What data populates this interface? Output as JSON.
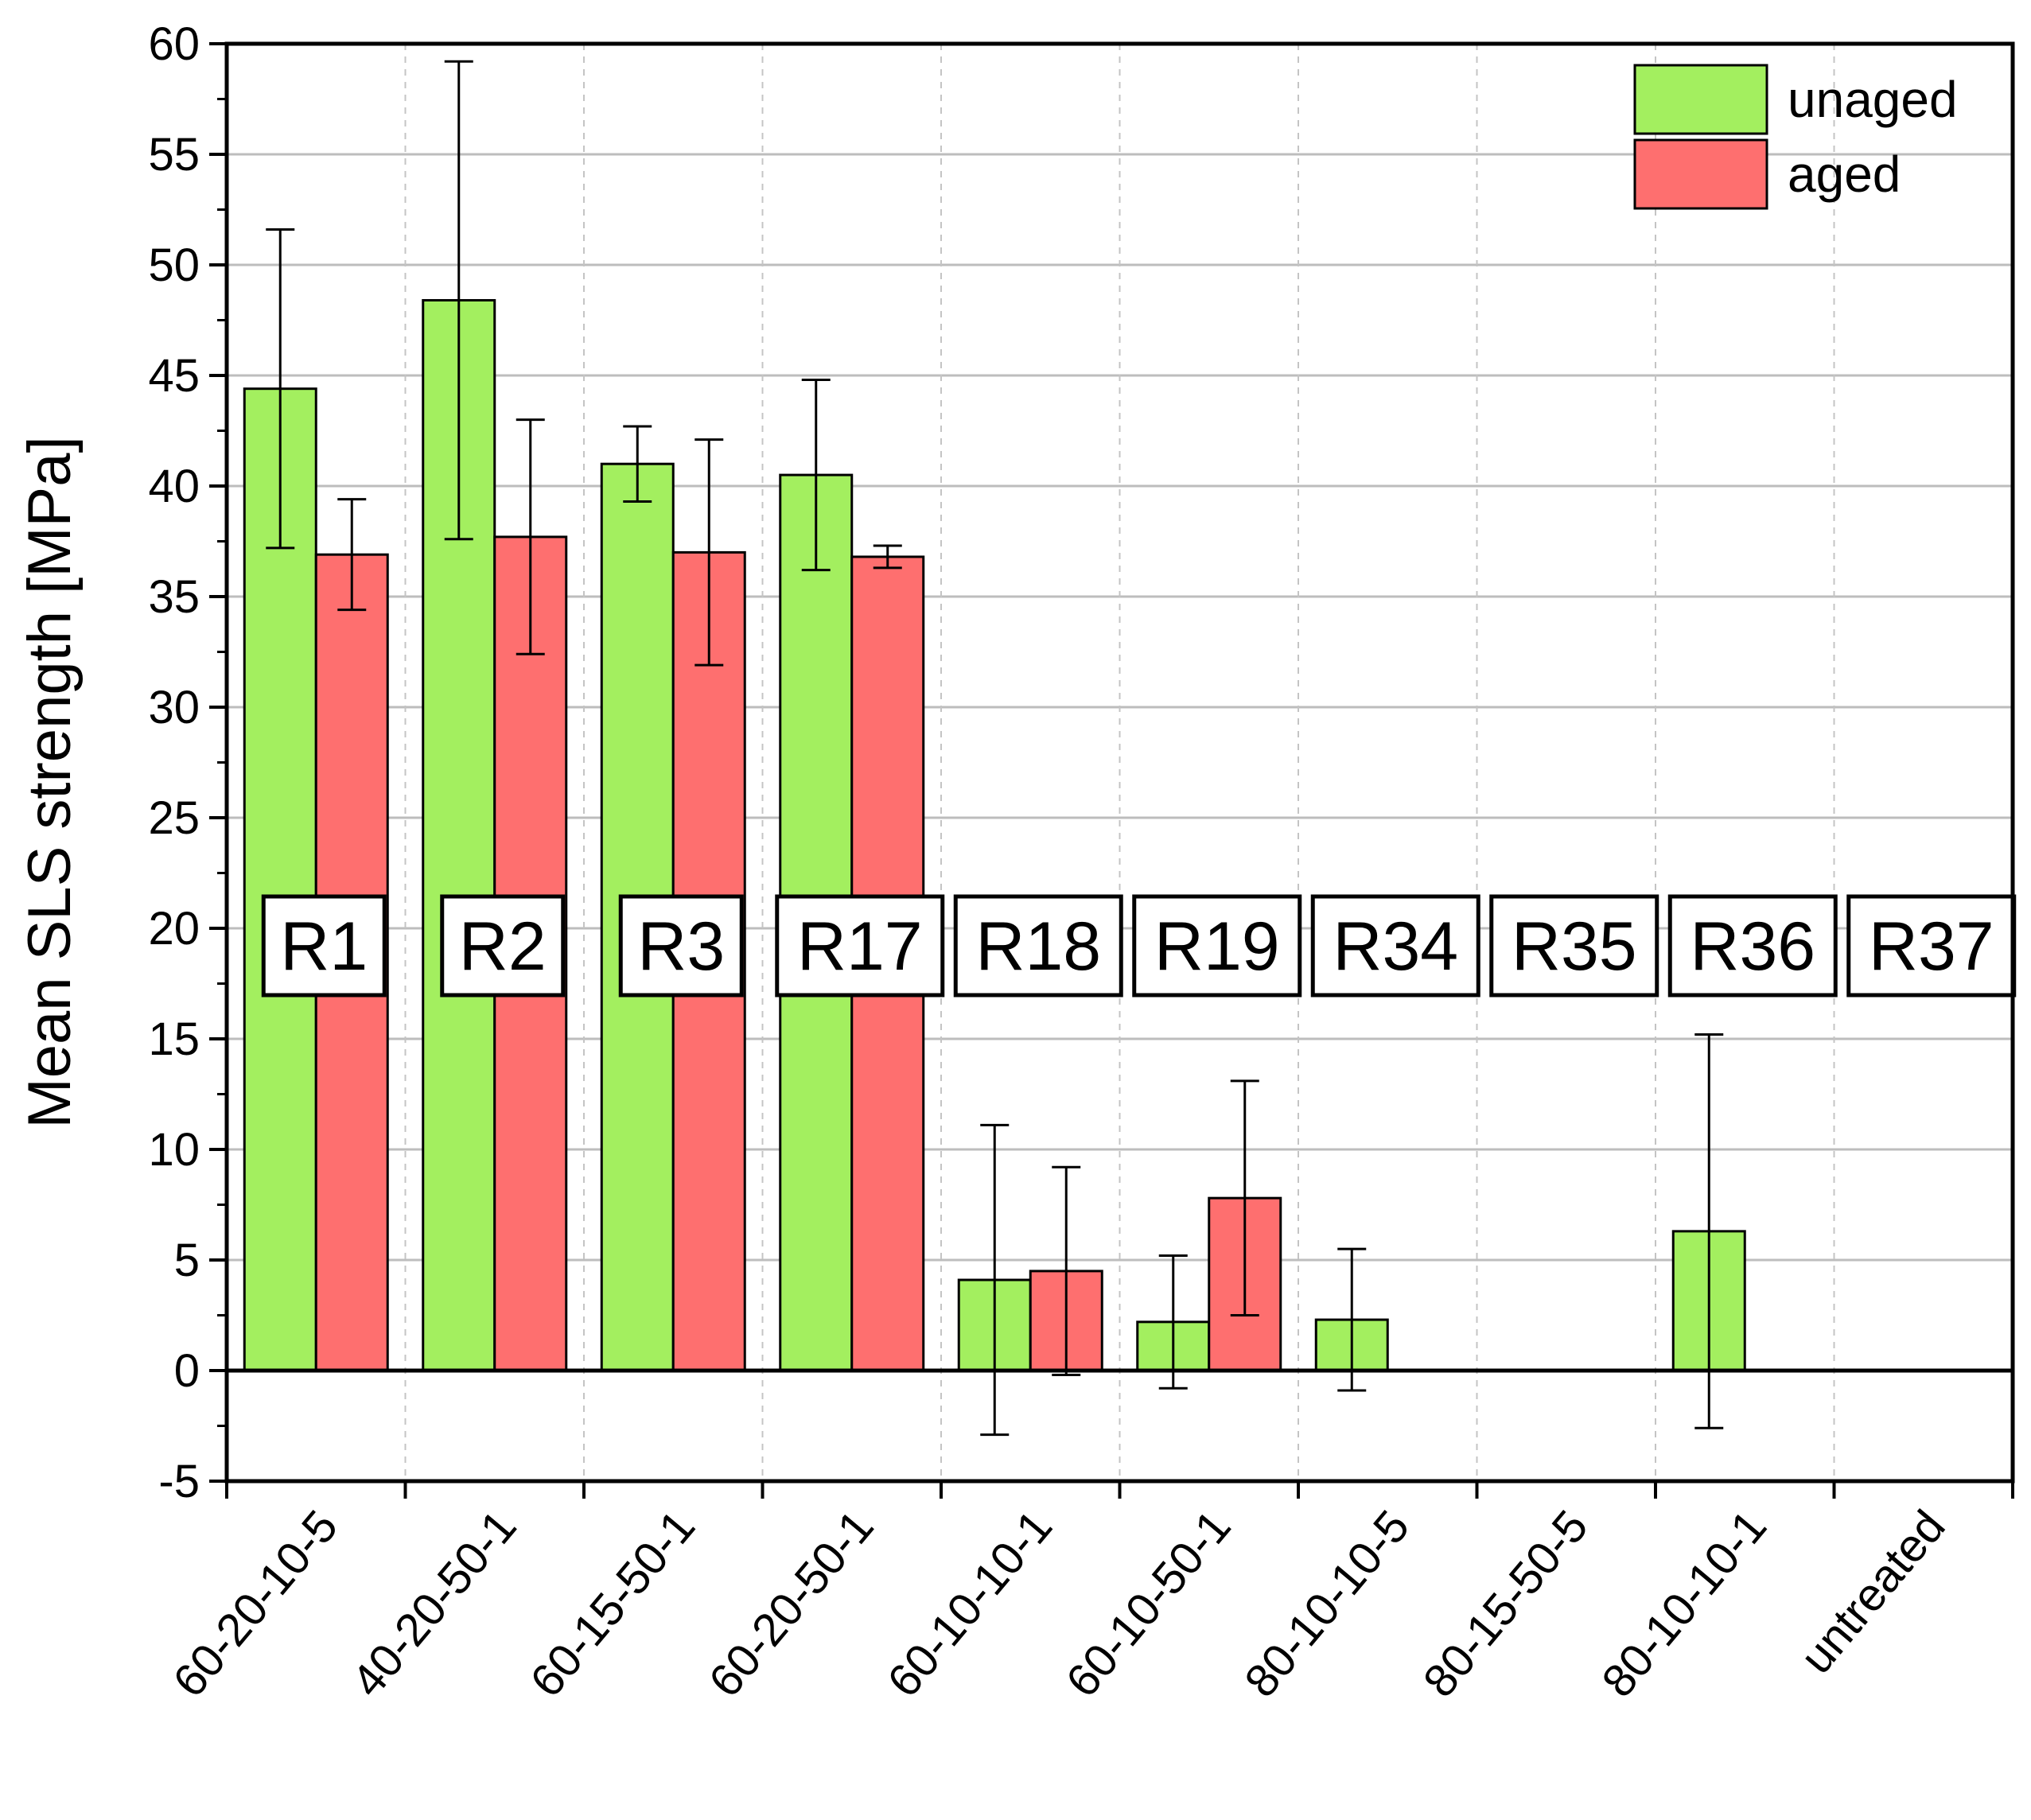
{
  "chart_data": {
    "type": "bar",
    "title": "",
    "xlabel": "",
    "ylabel": "Mean SLS strength [MPa]",
    "ylim": [
      -5,
      60
    ],
    "yticks": [
      -5,
      0,
      5,
      10,
      15,
      20,
      25,
      30,
      35,
      40,
      45,
      50,
      55,
      60
    ],
    "grid": true,
    "legend_position": "top-right",
    "categories": [
      "60-20-10-5",
      "40-20-50-1",
      "60-15-50-1",
      "60-20-50-1",
      "60-10-10-1",
      "60-10-50-1",
      "80-10-10-5",
      "80-15-50-5",
      "80-10-10-1",
      "untreated"
    ],
    "sample_labels": [
      "R1",
      "R2",
      "R3",
      "R17",
      "R18",
      "R19",
      "R34",
      "R35",
      "R36",
      "R37"
    ],
    "series": [
      {
        "name": "unaged",
        "color": "#a3ef5f",
        "values": [
          44.4,
          48.4,
          41.0,
          40.5,
          4.1,
          2.2,
          2.3,
          null,
          6.3,
          null
        ],
        "errors": [
          7.2,
          10.8,
          1.7,
          4.3,
          7.0,
          3.0,
          3.2,
          null,
          8.9,
          null
        ]
      },
      {
        "name": "aged",
        "color": "#fe6f6f",
        "values": [
          36.9,
          37.7,
          37.0,
          36.8,
          4.5,
          7.8,
          null,
          null,
          null,
          null
        ],
        "errors": [
          2.5,
          5.3,
          5.1,
          0.5,
          4.7,
          5.3,
          null,
          null,
          null,
          null
        ]
      }
    ]
  }
}
